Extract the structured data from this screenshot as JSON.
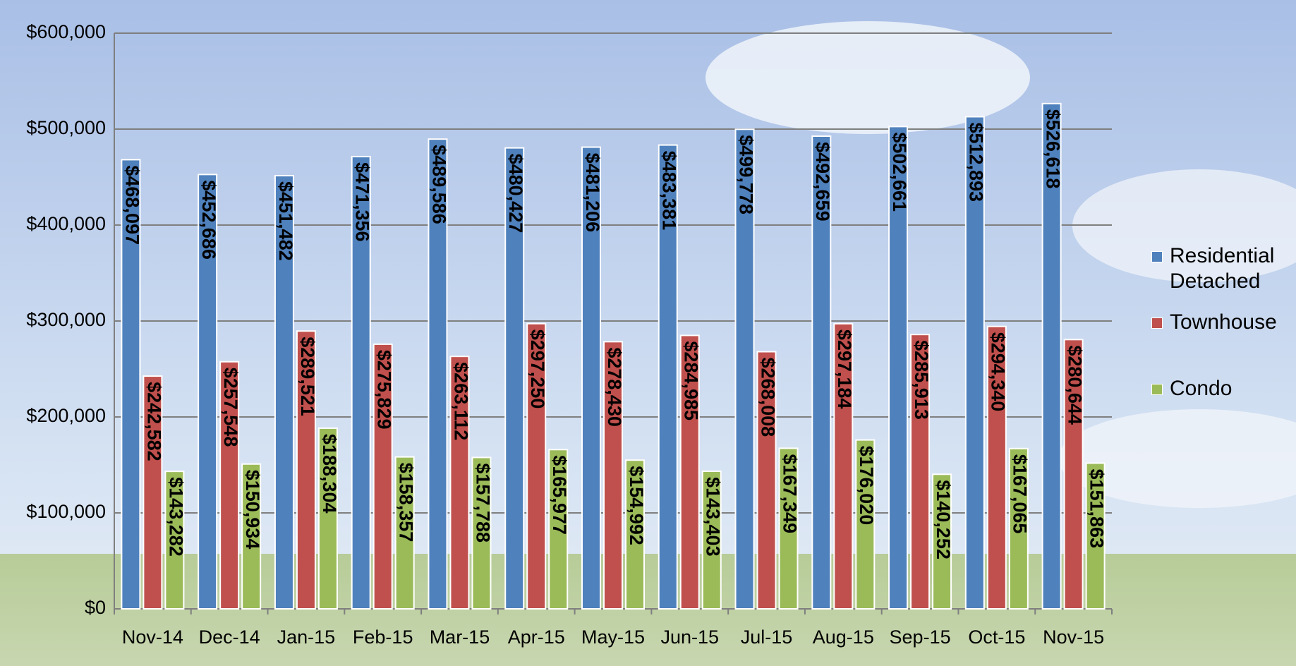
{
  "chart_data": {
    "type": "bar",
    "categories": [
      "Nov-14",
      "Dec-14",
      "Jan-15",
      "Feb-15",
      "Mar-15",
      "Apr-15",
      "May-15",
      "Jun-15",
      "Jul-15",
      "Aug-15",
      "Sep-15",
      "Oct-15",
      "Nov-15"
    ],
    "series": [
      {
        "name": "Residential Detached",
        "color": "#4f81bd",
        "values": [
          468097,
          452686,
          451482,
          471356,
          489586,
          480427,
          481206,
          483381,
          499778,
          492659,
          502661,
          512893,
          526618
        ],
        "value_labels": [
          "$468,097",
          "$452,686",
          "$451,482",
          "$471,356",
          "$489,586",
          "$480,427",
          "$481,206",
          "$483,381",
          "$499,778",
          "$492,659",
          "$502,661",
          "$512,893",
          "$526,618"
        ]
      },
      {
        "name": "Townhouse",
        "color": "#c0504d",
        "values": [
          242582,
          257548,
          289521,
          275829,
          263112,
          297250,
          278430,
          284985,
          268008,
          297184,
          285913,
          294340,
          280644
        ],
        "value_labels": [
          "$242,582",
          "$257,548",
          "$289,521",
          "$275,829",
          "$263,112",
          "$297,250",
          "$278,430",
          "$284,985",
          "$268,008",
          "$297,184",
          "$285,913",
          "$294,340",
          "$280,644"
        ]
      },
      {
        "name": "Condo",
        "color": "#9bbb59",
        "values": [
          143282,
          150934,
          188304,
          158357,
          157788,
          165977,
          154992,
          143403,
          167349,
          176020,
          140252,
          167065,
          151863
        ],
        "value_labels": [
          "$143,282",
          "$150,934",
          "$188,304",
          "$158,357",
          "$157,788",
          "$165,977",
          "$154,992",
          "$143,403",
          "$167,349",
          "$176,020",
          "$140,252",
          "$167,065",
          "$151,863"
        ]
      }
    ],
    "ylim": [
      0,
      600000
    ],
    "yticks": [
      {
        "value": 0,
        "label": "$0"
      },
      {
        "value": 100000,
        "label": "$100,000"
      },
      {
        "value": 200000,
        "label": "$200,000"
      },
      {
        "value": 300000,
        "label": "$300,000"
      },
      {
        "value": 400000,
        "label": "$400,000"
      },
      {
        "value": 500000,
        "label": "$500,000"
      },
      {
        "value": 600000,
        "label": "$600,000"
      }
    ],
    "grid": true,
    "legend": "right"
  }
}
